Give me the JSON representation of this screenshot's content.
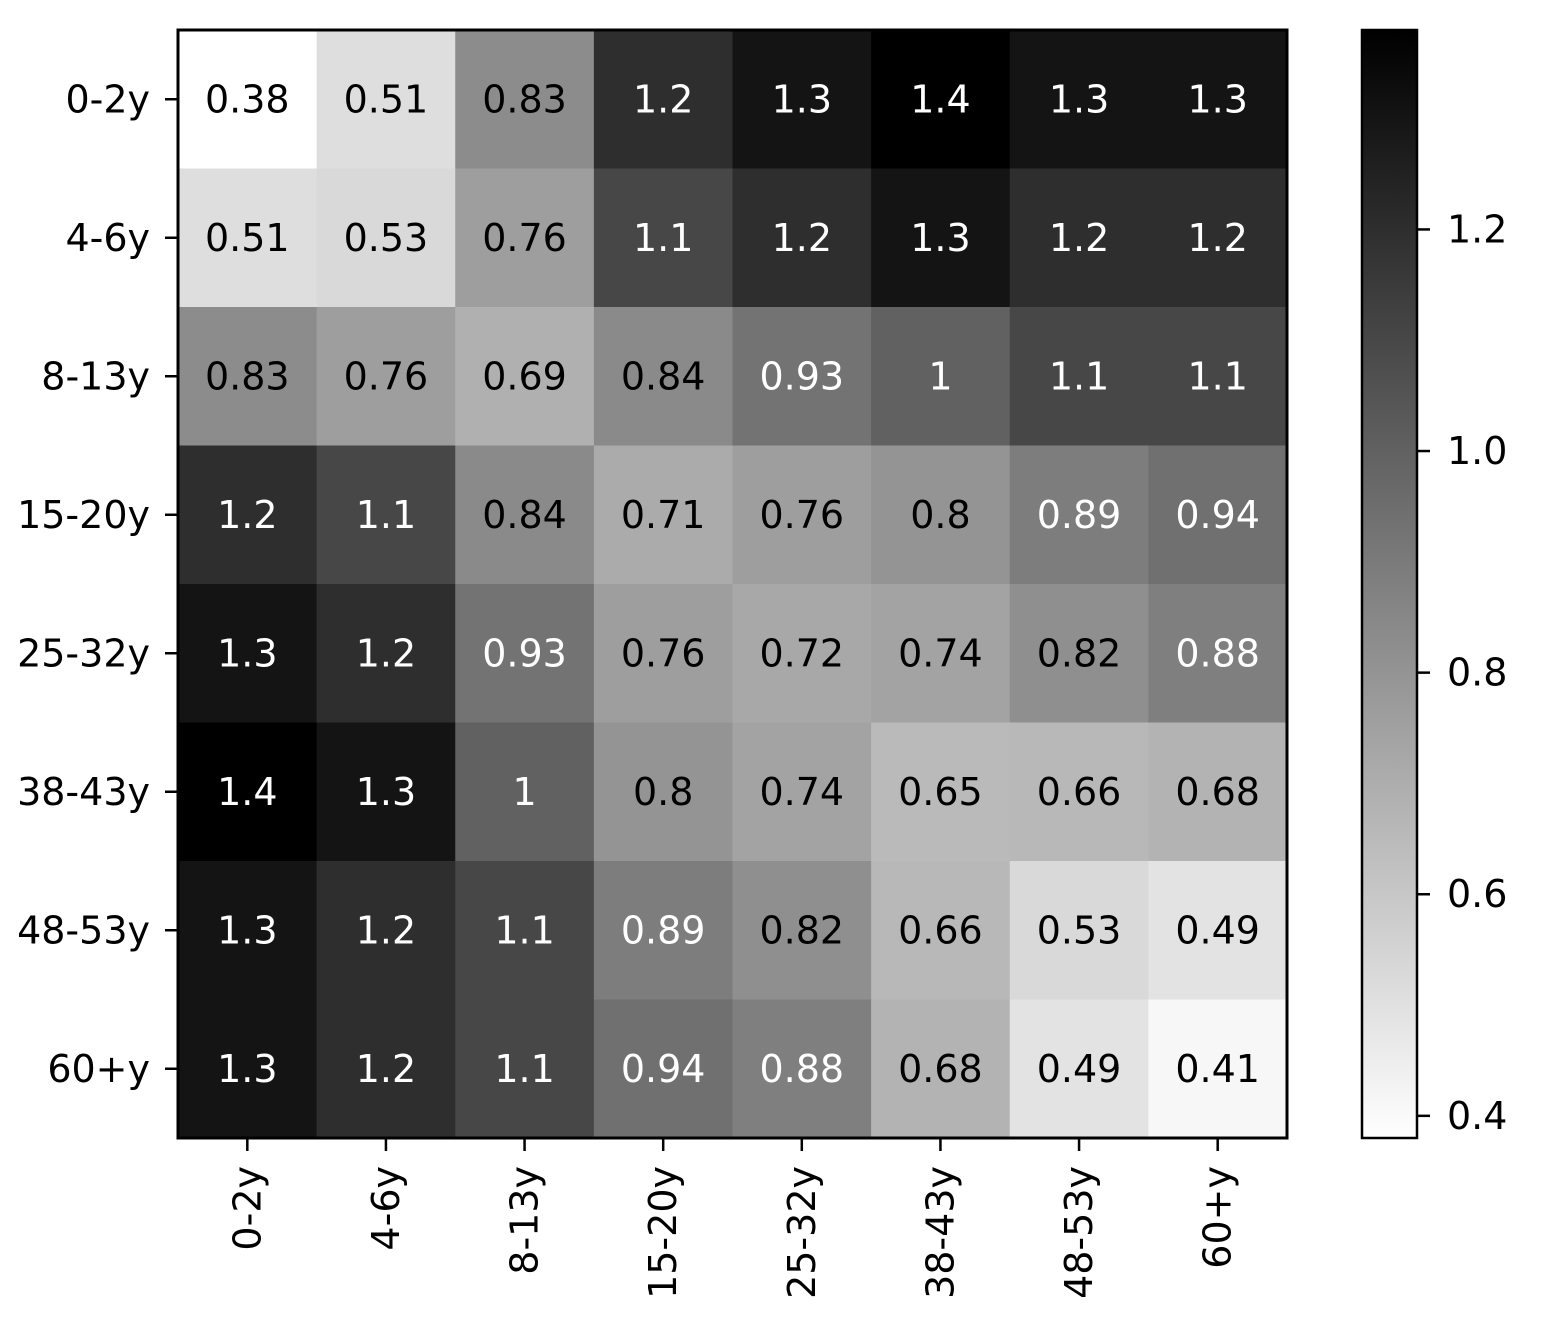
{
  "chart_data": {
    "type": "heatmap",
    "title": "",
    "xlabel": "",
    "ylabel": "",
    "x_categories": [
      "0-2y",
      "4-6y",
      "8-13y",
      "15-20y",
      "25-32y",
      "38-43y",
      "48-53y",
      "60+y"
    ],
    "y_categories": [
      "0-2y",
      "4-6y",
      "8-13y",
      "15-20y",
      "25-32y",
      "38-43y",
      "48-53y",
      "60+y"
    ],
    "values": [
      [
        0.38,
        0.51,
        0.83,
        1.2,
        1.3,
        1.4,
        1.3,
        1.3
      ],
      [
        0.51,
        0.53,
        0.76,
        1.1,
        1.2,
        1.3,
        1.2,
        1.2
      ],
      [
        0.83,
        0.76,
        0.69,
        0.84,
        0.93,
        1,
        1.1,
        1.1
      ],
      [
        1.2,
        1.1,
        0.84,
        0.71,
        0.76,
        0.8,
        0.89,
        0.94
      ],
      [
        1.3,
        1.2,
        0.93,
        0.76,
        0.72,
        0.74,
        0.82,
        0.88
      ],
      [
        1.4,
        1.3,
        1,
        0.8,
        0.74,
        0.65,
        0.66,
        0.68
      ],
      [
        1.3,
        1.2,
        1.1,
        0.89,
        0.82,
        0.66,
        0.53,
        0.49
      ],
      [
        1.3,
        1.2,
        1.1,
        0.94,
        0.88,
        0.68,
        0.49,
        0.41
      ]
    ],
    "cell_labels": [
      [
        "0.38",
        "0.51",
        "0.83",
        "1.2",
        "1.3",
        "1.4",
        "1.3",
        "1.3"
      ],
      [
        "0.51",
        "0.53",
        "0.76",
        "1.1",
        "1.2",
        "1.3",
        "1.2",
        "1.2"
      ],
      [
        "0.83",
        "0.76",
        "0.69",
        "0.84",
        "0.93",
        "1",
        "1.1",
        "1.1"
      ],
      [
        "1.2",
        "1.1",
        "0.84",
        "0.71",
        "0.76",
        "0.8",
        "0.89",
        "0.94"
      ],
      [
        "1.3",
        "1.2",
        "0.93",
        "0.76",
        "0.72",
        "0.74",
        "0.82",
        "0.88"
      ],
      [
        "1.4",
        "1.3",
        "1",
        "0.8",
        "0.74",
        "0.65",
        "0.66",
        "0.68"
      ],
      [
        "1.3",
        "1.2",
        "1.1",
        "0.89",
        "0.82",
        "0.66",
        "0.53",
        "0.49"
      ],
      [
        "1.3",
        "1.2",
        "1.1",
        "0.94",
        "0.88",
        "0.68",
        "0.49",
        "0.41"
      ]
    ],
    "colormap": "grayscale",
    "color_low": "#ffffff",
    "color_high": "#000000",
    "label_color_dark": "#000000",
    "label_color_light": "#ffffff",
    "colorbar": {
      "range": [
        0.38,
        1.38
      ],
      "ticks": [
        0.4,
        0.6,
        0.8,
        1.0,
        1.2
      ],
      "tick_labels": [
        "0.4",
        "0.6",
        "0.8",
        "1.0",
        "1.2"
      ]
    },
    "grid": false
  }
}
